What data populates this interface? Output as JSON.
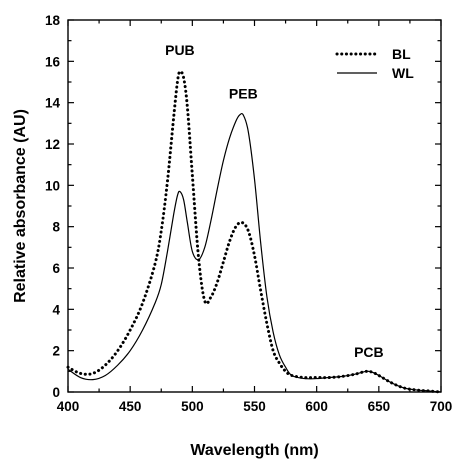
{
  "chart_data": {
    "type": "line",
    "xlabel": "Wavelength (nm)",
    "ylabel": "Relative absorbance (AU)",
    "xlim": [
      400,
      700
    ],
    "ylim": [
      0,
      18
    ],
    "xticks": [
      400,
      450,
      500,
      550,
      600,
      650,
      700
    ],
    "yticks": [
      0,
      2,
      4,
      6,
      8,
      10,
      12,
      14,
      16,
      18
    ],
    "legend_placement": "top-right",
    "grid": false,
    "series": [
      {
        "name": "BL",
        "style": "dotted",
        "color": "#000000",
        "x": [
          400,
          410,
          420,
          430,
          440,
          450,
          460,
          470,
          475,
          480,
          485,
          488,
          490,
          493,
          496,
          500,
          505,
          510,
          515,
          520,
          525,
          530,
          535,
          540,
          545,
          550,
          555,
          560,
          565,
          570,
          575,
          580,
          590,
          600,
          610,
          620,
          630,
          640,
          645,
          650,
          660,
          670,
          680,
          690,
          700
        ],
        "y": [
          1.2,
          0.9,
          0.9,
          1.3,
          2.0,
          3.0,
          4.3,
          6.2,
          7.8,
          10.2,
          13.3,
          15.0,
          15.5,
          15.2,
          13.8,
          10.5,
          6.5,
          4.4,
          4.6,
          5.3,
          6.3,
          7.3,
          8.0,
          8.2,
          7.8,
          6.6,
          4.9,
          3.3,
          2.0,
          1.4,
          1.0,
          0.8,
          0.7,
          0.7,
          0.7,
          0.75,
          0.85,
          1.0,
          0.95,
          0.8,
          0.45,
          0.2,
          0.1,
          0.05,
          0.0
        ]
      },
      {
        "name": "WL",
        "style": "solid",
        "color": "#000000",
        "x": [
          400,
          410,
          420,
          430,
          440,
          450,
          460,
          470,
          475,
          480,
          485,
          488,
          490,
          493,
          496,
          500,
          505,
          510,
          515,
          520,
          525,
          530,
          535,
          538,
          541,
          545,
          550,
          555,
          560,
          565,
          570,
          575,
          580,
          590,
          600,
          610,
          620,
          630,
          640,
          645,
          650,
          660,
          670,
          680,
          690,
          700
        ],
        "y": [
          1.1,
          0.7,
          0.6,
          0.8,
          1.3,
          2.0,
          3.0,
          4.3,
          5.2,
          6.8,
          8.6,
          9.5,
          9.7,
          9.3,
          8.2,
          6.8,
          6.4,
          7.0,
          8.3,
          9.8,
          11.2,
          12.3,
          13.1,
          13.4,
          13.4,
          12.6,
          10.3,
          7.2,
          4.6,
          2.9,
          1.8,
          1.2,
          0.8,
          0.65,
          0.65,
          0.7,
          0.75,
          0.85,
          1.0,
          0.95,
          0.8,
          0.45,
          0.2,
          0.1,
          0.05,
          0.0
        ]
      }
    ],
    "annotations": [
      {
        "text": "PUB",
        "x": 490,
        "y": 16.3
      },
      {
        "text": "PEB",
        "x": 541,
        "y": 14.2
      },
      {
        "text": "PCB",
        "x": 642,
        "y": 1.7
      }
    ]
  }
}
